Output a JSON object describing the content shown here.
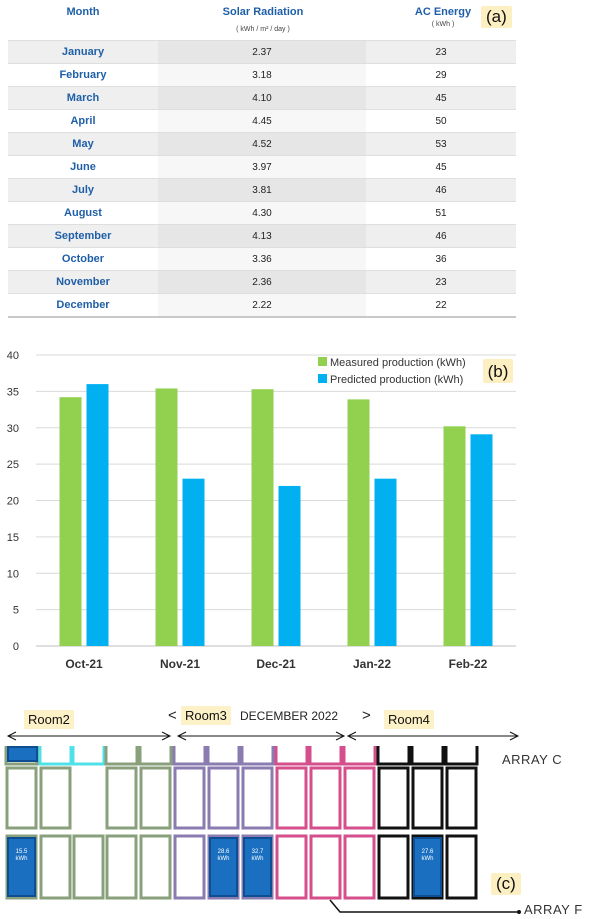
{
  "table": {
    "tag": "(a)",
    "headers": {
      "month": "Month",
      "solar": "Solar Radiation",
      "solar_unit": "( kWh / m² / day )",
      "ac": "AC Energy",
      "ac_unit": "( kWh )"
    },
    "rows": [
      {
        "month": "January",
        "solar": "2.37",
        "ac": "23"
      },
      {
        "month": "February",
        "solar": "3.18",
        "ac": "29"
      },
      {
        "month": "March",
        "solar": "4.10",
        "ac": "45"
      },
      {
        "month": "April",
        "solar": "4.45",
        "ac": "50"
      },
      {
        "month": "May",
        "solar": "4.52",
        "ac": "53"
      },
      {
        "month": "June",
        "solar": "3.97",
        "ac": "45"
      },
      {
        "month": "July",
        "solar": "3.81",
        "ac": "46"
      },
      {
        "month": "August",
        "solar": "4.30",
        "ac": "51"
      },
      {
        "month": "September",
        "solar": "4.13",
        "ac": "46"
      },
      {
        "month": "October",
        "solar": "3.36",
        "ac": "36"
      },
      {
        "month": "November",
        "solar": "2.36",
        "ac": "23"
      },
      {
        "month": "December",
        "solar": "2.22",
        "ac": "22"
      }
    ]
  },
  "chart_data": [
    {
      "type": "table",
      "columns": [
        "Month",
        "Solar Radiation",
        "AC Energy"
      ],
      "units": [
        "",
        "( kWh / m² / day )",
        "( kWh )"
      ],
      "rows": [
        [
          "January",
          2.37,
          23
        ],
        [
          "February",
          3.18,
          29
        ],
        [
          "March",
          4.1,
          45
        ],
        [
          "April",
          4.45,
          50
        ],
        [
          "May",
          4.52,
          53
        ],
        [
          "June",
          3.97,
          45
        ],
        [
          "July",
          3.81,
          46
        ],
        [
          "August",
          4.3,
          51
        ],
        [
          "September",
          4.13,
          46
        ],
        [
          "October",
          3.36,
          36
        ],
        [
          "November",
          2.36,
          23
        ],
        [
          "December",
          2.22,
          22
        ]
      ]
    },
    {
      "type": "bar",
      "tag": "(b)",
      "categories": [
        "Oct-21",
        "Nov-21",
        "Dec-21",
        "Jan-22",
        "Feb-22"
      ],
      "series": [
        {
          "name": "Measured production (kWh)",
          "color": "#92d050",
          "values": [
            34.2,
            35.4,
            35.3,
            33.9,
            30.2
          ]
        },
        {
          "name": "Predicted production (kWh)",
          "color": "#00b0f0",
          "values": [
            36.0,
            23.0,
            22.0,
            23.0,
            29.1
          ]
        }
      ],
      "ylim": [
        0,
        40
      ],
      "yticks": [
        0,
        5,
        10,
        15,
        20,
        25,
        30,
        35,
        40
      ],
      "grid": true,
      "legend": "top-right"
    }
  ],
  "array": {
    "tag": "(c)",
    "rooms": [
      "Room2",
      "Room3",
      "Room4"
    ],
    "title": "DECEMBER 2022",
    "nav_prev": "<",
    "nav_next": ">",
    "array_labels": [
      "ARRAY C",
      "ARRAY F"
    ],
    "kwh_labels": [
      "15.5 kWh",
      "28.6 kWh",
      "32.7 kWh",
      "27.6 kWh"
    ],
    "room_colors": [
      "#8aa07d",
      "#8a7bb0",
      "#d44f8b",
      "#111111"
    ],
    "cyan_color": "#4fe0e8",
    "panel_blue": "#1a6fc0"
  }
}
